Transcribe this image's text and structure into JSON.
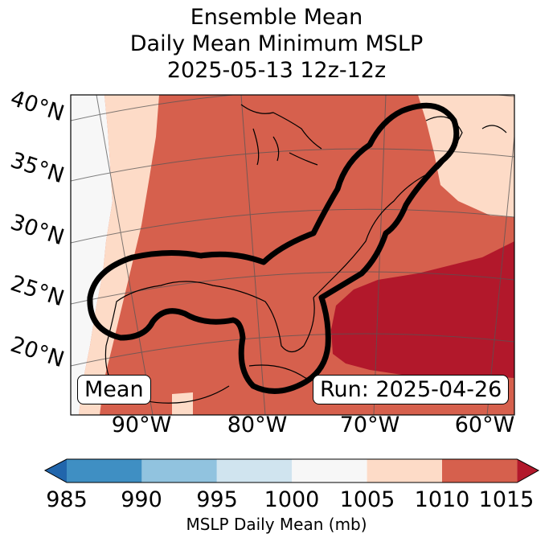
{
  "title": {
    "line1": "Ensemble Mean",
    "line2": "Daily Mean Minimum MSLP",
    "line3": "2025-05-13 12z-12z"
  },
  "latitude_labels": [
    "40°N",
    "35°N",
    "30°N",
    "25°N",
    "20°N"
  ],
  "longitude_labels": [
    "90°W",
    "80°W",
    "70°W",
    "60°W"
  ],
  "overlay": {
    "mean_label": "Mean",
    "run_label": "Run: 2025-04-26"
  },
  "colorbar": {
    "ticks": [
      "985",
      "990",
      "995",
      "1000",
      "1005",
      "1010",
      "1015"
    ],
    "label": "MSLP Daily Mean (mb)",
    "colors": [
      "#3f8fc3",
      "#91c3df",
      "#d0e4ef",
      "#f7f7f7",
      "#fddbc7",
      "#d6604d",
      "#b2182b"
    ],
    "under_color": "#2166ac",
    "over_color": "#b2182b"
  },
  "legend_colors": {
    "contour": "#000000",
    "coastline": "#000000",
    "gridline": "#555555"
  }
}
